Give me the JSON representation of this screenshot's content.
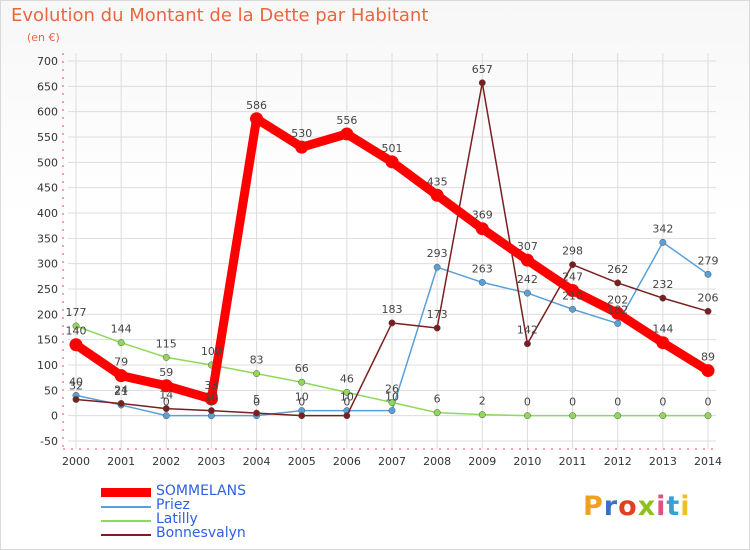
{
  "header": {
    "title": "Evolution du Montant de la Dette par Habitant",
    "unit": "(en €)"
  },
  "logo": {
    "text": "Proxiti",
    "colors": [
      "#f0a020",
      "#3a6fc8",
      "#e04020",
      "#90c020",
      "#e05080",
      "#3aa0d0",
      "#f0c020"
    ]
  },
  "chart_data": {
    "type": "line",
    "title": "Evolution du Montant de la Dette par Habitant",
    "ylabel": "(en €)",
    "x": [
      "2000",
      "2001",
      "2002",
      "2003",
      "2004",
      "2005",
      "2006",
      "2007",
      "2008",
      "2009",
      "2010",
      "2011",
      "2012",
      "2013",
      "2014"
    ],
    "ylim": [
      -50,
      700
    ],
    "yticks": [
      -50,
      0,
      50,
      100,
      150,
      200,
      250,
      300,
      350,
      400,
      450,
      500,
      550,
      600,
      650,
      700
    ],
    "grid": true,
    "legend_position": "bottom-left",
    "series": [
      {
        "name": "SOMMELANS",
        "color": "#ff0000",
        "values": [
          140,
          79,
          59,
          33,
          586,
          530,
          556,
          501,
          435,
          369,
          307,
          247,
          202,
          144,
          89
        ]
      },
      {
        "name": "Priez",
        "color": "#5aa0d8",
        "values": [
          40,
          21,
          0,
          0,
          0,
          10,
          10,
          10,
          293,
          263,
          242,
          210,
          182,
          342,
          279
        ]
      },
      {
        "name": "Latilly",
        "color": "#90d858",
        "values": [
          177,
          144,
          115,
          100,
          83,
          66,
          46,
          26,
          6,
          2,
          0,
          0,
          0,
          0,
          0
        ]
      },
      {
        "name": "Bonnesvalyn",
        "color": "#7a1f1f",
        "values": [
          32,
          24,
          14,
          10,
          5,
          0,
          0,
          183,
          173,
          657,
          142,
          298,
          262,
          232,
          206
        ]
      }
    ],
    "data_labels": {
      "SOMMELANS": [
        "140",
        "79",
        "59",
        "33",
        "586",
        "530",
        "556",
        "501",
        "435",
        "369",
        "307",
        "247",
        "202",
        "144",
        "89"
      ],
      "Priez": [
        "40",
        "21",
        "0",
        "0",
        "0",
        "10",
        "10",
        "10",
        "293",
        "263",
        "242",
        "210",
        "182",
        "342",
        "279"
      ],
      "Latilly": [
        "177",
        "144",
        "115",
        "100",
        "83",
        "66",
        "46",
        "26",
        "6",
        "2",
        "0",
        "0",
        "0",
        "0",
        "0"
      ],
      "Bonnesvalyn": [
        "32",
        "24",
        "14",
        "10",
        "5",
        "0",
        "0",
        "183",
        "173",
        "657",
        "142",
        "298",
        "262",
        "232",
        "206"
      ]
    }
  }
}
